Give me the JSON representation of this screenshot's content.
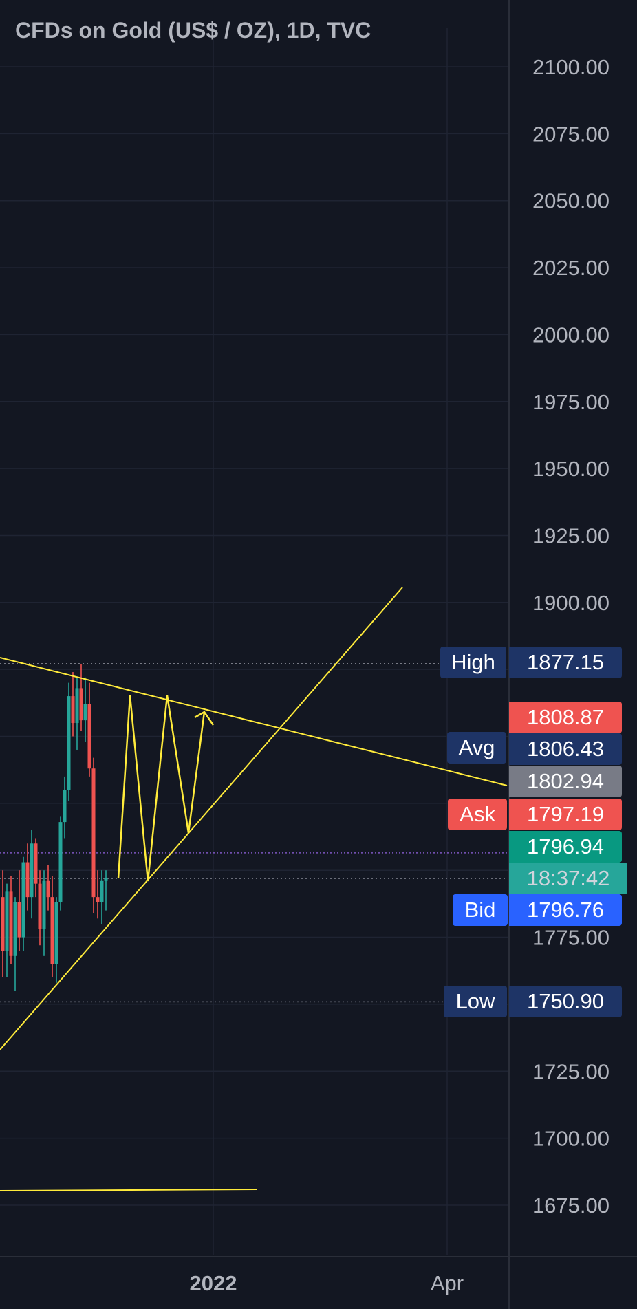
{
  "chart_data": {
    "type": "candlestick",
    "title": "CFDs on Gold (US$ / OZ), 1D, TVC",
    "y_ticks": [
      "2100.00",
      "2075.00",
      "2050.00",
      "2025.00",
      "2000.00",
      "1975.00",
      "1950.00",
      "1925.00",
      "1900.00",
      "1775.00",
      "1725.00",
      "1700.00",
      "1675.00"
    ],
    "y_tick_values": [
      2100,
      2075,
      2050,
      2025,
      2000,
      1975,
      1950,
      1925,
      1900,
      1775,
      1725,
      1700,
      1675
    ],
    "ylim": [
      1656,
      2108
    ],
    "x_ticks": [
      "2022",
      "Apr"
    ],
    "grid": true,
    "price_labels": {
      "high": {
        "tag": "High",
        "value": "1877.15",
        "price": 1877.15
      },
      "ask_top": {
        "value": "1808.87",
        "price": 1808.87
      },
      "avg": {
        "tag": "Avg",
        "value": "1806.43",
        "price": 1806.43
      },
      "mid": {
        "value": "1802.94",
        "price": 1802.94
      },
      "ask": {
        "tag": "Ask",
        "value": "1797.19",
        "price": 1797.19
      },
      "last": {
        "value": "1796.94",
        "price": 1796.94
      },
      "countdown": {
        "value": "18:37:42"
      },
      "bid": {
        "tag": "Bid",
        "value": "1796.76",
        "price": 1796.76
      },
      "low": {
        "tag": "Low",
        "value": "1750.90",
        "price": 1750.9
      }
    },
    "colors": {
      "background": "#131722",
      "up": "#26a69a",
      "down": "#ef5350",
      "drawing": "#ffeb3b",
      "high_low_bg": "#1e3466",
      "ask_bg": "#ef5350",
      "bid_bg": "#2962ff",
      "mid_bg": "#787b86",
      "last_bg": "#089981",
      "countdown_bg": "#26a69a",
      "text": "#b2b5be"
    }
  }
}
